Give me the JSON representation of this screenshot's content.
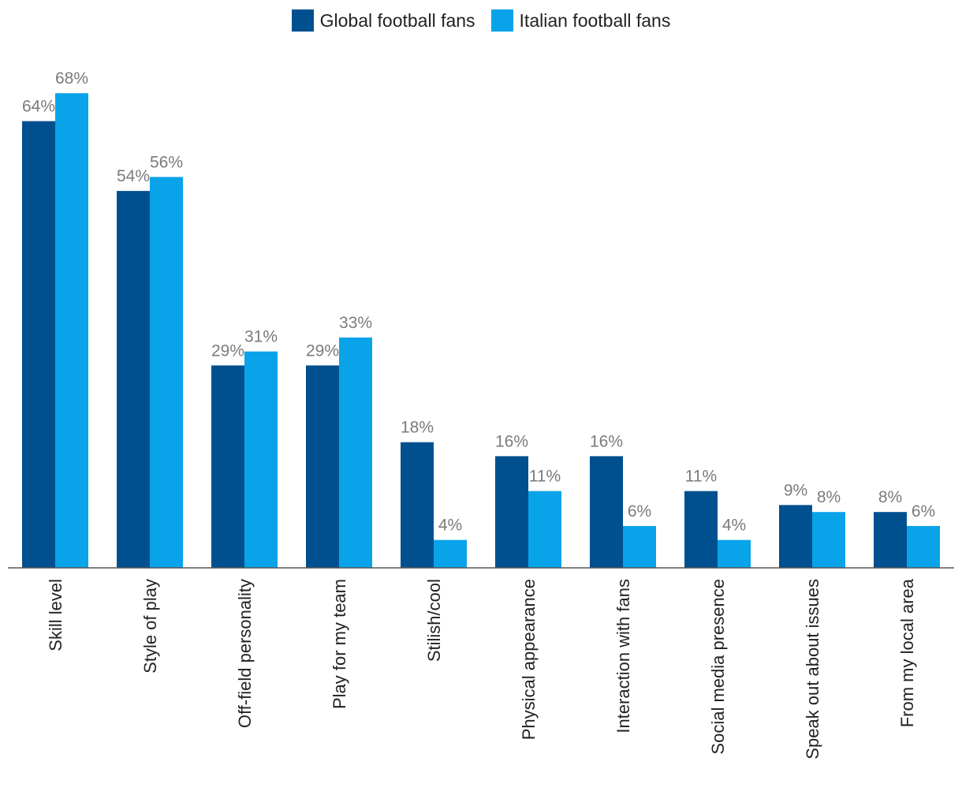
{
  "chart_data": {
    "type": "bar",
    "categories": [
      "Skill level",
      "Style of play",
      "Off-field personality",
      "Play for my team",
      "Stilish/cool",
      "Physical appearance",
      "Interaction with fans",
      "Social media presence",
      "Speak out about issues",
      "From my local area"
    ],
    "series": [
      {
        "name": "Global football fans",
        "values": [
          64,
          54,
          29,
          29,
          18,
          16,
          16,
          11,
          9,
          8
        ],
        "color": "#00508f"
      },
      {
        "name": "Italian football fans",
        "values": [
          68,
          56,
          31,
          33,
          4,
          11,
          6,
          4,
          8,
          6
        ],
        "color": "#08a3e9"
      }
    ],
    "value_suffix": "%",
    "ylim": [
      0,
      70
    ],
    "grid": false,
    "legend_position": "top-center"
  }
}
